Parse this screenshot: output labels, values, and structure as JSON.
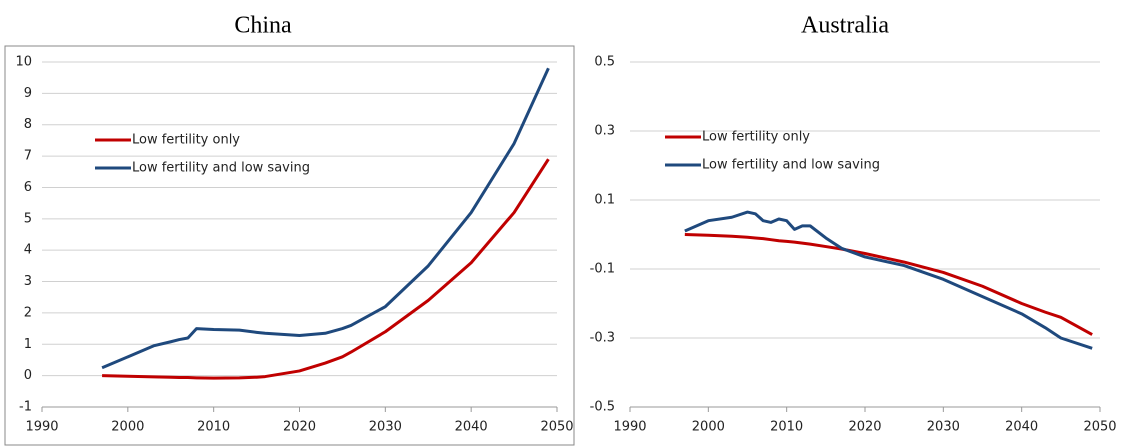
{
  "chart_data": [
    {
      "type": "line",
      "title": "China",
      "x": [
        1997,
        2000,
        2003,
        2005,
        2006,
        2007,
        2008,
        2010,
        2013,
        2015,
        2016,
        2020,
        2023,
        2025,
        2026,
        2030,
        2035,
        2040,
        2045,
        2049
      ],
      "series": [
        {
          "name": "Low fertility only",
          "color": "#c00000",
          "values": [
            0,
            -0.02,
            -0.04,
            -0.05,
            -0.06,
            -0.06,
            -0.07,
            -0.08,
            -0.07,
            -0.05,
            -0.03,
            0.15,
            0.4,
            0.6,
            0.75,
            1.4,
            2.4,
            3.6,
            5.2,
            6.9
          ]
        },
        {
          "name": "Low fertility and low saving",
          "color": "#1f497d",
          "values": [
            0.25,
            0.6,
            0.95,
            1.08,
            1.15,
            1.2,
            1.5,
            1.47,
            1.45,
            1.38,
            1.35,
            1.28,
            1.35,
            1.5,
            1.6,
            2.2,
            3.5,
            5.2,
            7.4,
            9.8
          ]
        }
      ],
      "xlim": [
        1990,
        2050
      ],
      "xticks": [
        1990,
        2000,
        2010,
        2020,
        2030,
        2040,
        2050
      ],
      "ylim": [
        -1,
        10
      ],
      "yticks": [
        -1,
        0,
        1,
        2,
        3,
        4,
        5,
        6,
        7,
        8,
        9,
        10
      ],
      "grid": true
    },
    {
      "type": "line",
      "title": "Australia",
      "x": [
        1997,
        2000,
        2003,
        2005,
        2006,
        2007,
        2008,
        2009,
        2010,
        2011,
        2012,
        2013,
        2015,
        2017,
        2020,
        2025,
        2030,
        2035,
        2040,
        2043,
        2045,
        2049
      ],
      "series": [
        {
          "name": "Low fertility only",
          "color": "#c00000",
          "values": [
            0,
            -0.002,
            -0.005,
            -0.008,
            -0.01,
            -0.012,
            -0.015,
            -0.018,
            -0.02,
            -0.022,
            -0.025,
            -0.028,
            -0.035,
            -0.042,
            -0.055,
            -0.08,
            -0.11,
            -0.15,
            -0.2,
            -0.225,
            -0.24,
            -0.29
          ]
        },
        {
          "name": "Low fertility and low saving",
          "color": "#1f497d",
          "values": [
            0.01,
            0.04,
            0.05,
            0.065,
            0.06,
            0.04,
            0.035,
            0.045,
            0.04,
            0.015,
            0.025,
            0.025,
            -0.01,
            -0.04,
            -0.065,
            -0.09,
            -0.13,
            -0.18,
            -0.23,
            -0.27,
            -0.3,
            -0.33
          ]
        }
      ],
      "xlim": [
        1990,
        2050
      ],
      "xticks": [
        1990,
        2000,
        2010,
        2020,
        2030,
        2040,
        2050
      ],
      "ylim": [
        -0.5,
        0.5
      ],
      "yticks": [
        -0.5,
        -0.3,
        -0.1,
        0.1,
        0.3,
        0.5
      ],
      "grid": true
    }
  ]
}
